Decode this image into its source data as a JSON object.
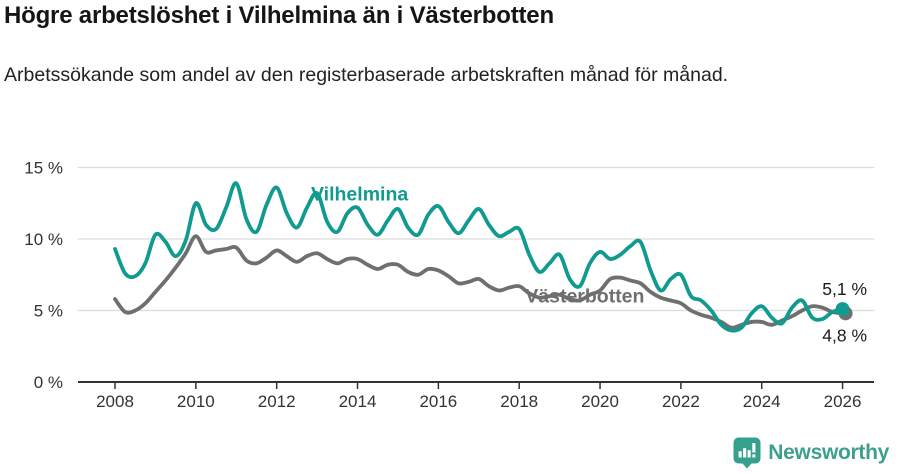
{
  "header": {
    "title": "Högre arbetslöshet i Vilhelmina än i Västerbotten",
    "subtitle": "Arbetssökande som andel av den registerbaserade arbetskraften månad för månad."
  },
  "chart_data": {
    "type": "line",
    "title": "Högre arbetslöshet i Vilhelmina än i Västerbotten",
    "subtitle": "Arbetssökande som andel av den registerbaserade arbetskraften månad för månad.",
    "xlabel": "",
    "ylabel": "",
    "unit": "%",
    "grid": "horizontal",
    "gridline_color": "#dcdcdc",
    "axis_color": "#333333",
    "xlim": [
      2007.1,
      2026.8
    ],
    "ylim": [
      0,
      15.8
    ],
    "x_ticks": [
      2008,
      2010,
      2012,
      2014,
      2016,
      2018,
      2020,
      2022,
      2024,
      2026
    ],
    "y_ticks": [
      {
        "value": 0,
        "label": "0 %"
      },
      {
        "value": 5,
        "label": "5 %"
      },
      {
        "value": 10,
        "label": "10 %"
      },
      {
        "value": 15,
        "label": "15 %"
      }
    ],
    "x": [
      2008,
      2008.25,
      2008.5,
      2008.75,
      2009,
      2009.25,
      2009.5,
      2009.75,
      2010,
      2010.25,
      2010.5,
      2010.75,
      2011,
      2011.25,
      2011.5,
      2011.75,
      2012,
      2012.25,
      2012.5,
      2012.75,
      2013,
      2013.25,
      2013.5,
      2013.75,
      2014,
      2014.25,
      2014.5,
      2014.75,
      2015,
      2015.25,
      2015.5,
      2015.75,
      2016,
      2016.25,
      2016.5,
      2016.75,
      2017,
      2017.25,
      2017.5,
      2017.75,
      2018,
      2018.25,
      2018.5,
      2018.75,
      2019,
      2019.25,
      2019.5,
      2019.75,
      2020,
      2020.25,
      2020.5,
      2020.75,
      2021,
      2021.25,
      2021.5,
      2021.75,
      2022,
      2022.25,
      2022.5,
      2022.75,
      2023,
      2023.25,
      2023.5,
      2023.75,
      2024,
      2024.25,
      2024.5,
      2024.75,
      2025,
      2025.25,
      2025.5,
      2025.75,
      2026
    ],
    "series": [
      {
        "name": "Vilhelmina",
        "key": "vilhelmina",
        "color": "#109a90",
        "label_at": {
          "x": 2012.85,
          "y": 12.7
        },
        "end_value_label": "5,1 %",
        "values": [
          9.3,
          7.6,
          7.4,
          8.3,
          10.3,
          9.8,
          8.8,
          9.9,
          12.5,
          11.0,
          10.7,
          12.2,
          13.9,
          11.4,
          10.5,
          12.4,
          13.6,
          11.8,
          10.8,
          12.2,
          13.2,
          11.2,
          10.5,
          11.8,
          12.2,
          11.0,
          10.3,
          11.3,
          12.1,
          10.8,
          10.3,
          11.7,
          12.3,
          11.2,
          10.4,
          11.3,
          12.1,
          11.0,
          10.2,
          10.5,
          10.7,
          8.9,
          7.7,
          8.3,
          8.9,
          7.2,
          6.7,
          8.3,
          9.1,
          8.6,
          8.9,
          9.5,
          9.8,
          7.8,
          6.4,
          7.2,
          7.5,
          6.0,
          5.7,
          5.0,
          4.0,
          3.6,
          3.8,
          4.8,
          5.3,
          4.5,
          4.1,
          5.2,
          5.7,
          4.5,
          4.4,
          4.9,
          5.1
        ]
      },
      {
        "name": "Västerbotten",
        "key": "vasterbotten",
        "color": "#6f6f6f",
        "label_at": {
          "x": 2018.15,
          "y": 5.55
        },
        "end_value_label": "4,8 %",
        "values": [
          5.8,
          4.9,
          5.0,
          5.5,
          6.3,
          7.1,
          8.0,
          9.0,
          10.2,
          9.1,
          9.2,
          9.3,
          9.4,
          8.5,
          8.3,
          8.7,
          9.2,
          8.8,
          8.4,
          8.8,
          9.0,
          8.6,
          8.3,
          8.6,
          8.6,
          8.2,
          7.9,
          8.2,
          8.2,
          7.7,
          7.5,
          7.9,
          7.8,
          7.4,
          6.9,
          7.0,
          7.2,
          6.7,
          6.4,
          6.6,
          6.7,
          6.2,
          5.9,
          6.0,
          6.1,
          5.8,
          5.7,
          6.1,
          6.4,
          7.2,
          7.3,
          7.1,
          6.9,
          6.3,
          5.9,
          5.7,
          5.5,
          5.0,
          4.7,
          4.5,
          4.2,
          3.8,
          4.0,
          4.2,
          4.2,
          4.0,
          4.3,
          4.6,
          5.0,
          5.3,
          5.2,
          4.9,
          4.8
        ]
      }
    ]
  },
  "footer": {
    "brand": "Newsworthy",
    "logo_icon": "bar-chart-speech-bubble-icon"
  }
}
